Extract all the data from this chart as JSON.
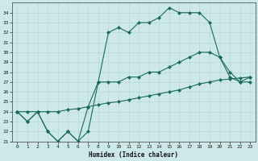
{
  "xlabel": "Humidex (Indice chaleur)",
  "bg_color": "#cce8e8",
  "line_color": "#1a6b5a",
  "grid_color": "#c8dede",
  "line1_x": [
    0,
    1,
    2,
    3,
    4,
    5,
    6,
    7,
    8,
    9,
    10,
    11,
    12,
    13,
    14,
    15,
    16,
    17,
    18,
    19,
    20,
    21,
    22,
    23
  ],
  "line1_y": [
    24,
    23,
    24,
    22,
    21,
    22,
    21,
    22,
    27,
    32,
    32.5,
    32,
    33,
    33,
    33.5,
    34.5,
    34,
    34,
    34,
    33,
    29.5,
    28,
    27,
    27
  ],
  "line2_x": [
    0,
    1,
    2,
    3,
    4,
    5,
    6,
    7,
    8,
    9,
    10,
    11,
    12,
    13,
    14,
    15,
    16,
    17,
    18,
    19,
    20,
    21,
    22,
    23
  ],
  "line2_y": [
    24,
    24,
    24,
    24,
    24,
    24.2,
    24.3,
    24.5,
    24.7,
    24.9,
    25,
    25.2,
    25.4,
    25.6,
    25.8,
    26,
    26.2,
    26.5,
    26.8,
    27,
    27.2,
    27.3,
    27.4,
    27.5
  ],
  "line3_x": [
    0,
    1,
    2,
    3,
    4,
    5,
    6,
    7,
    8,
    9,
    10,
    11,
    12,
    13,
    14,
    15,
    16,
    17,
    18,
    19,
    20,
    21,
    22,
    23
  ],
  "line3_y": [
    24,
    23,
    24,
    22,
    21,
    22,
    21,
    24.5,
    27,
    27,
    27,
    27.5,
    27.5,
    28,
    28,
    28.5,
    29,
    29.5,
    30,
    30,
    29.5,
    27.5,
    27,
    27.5
  ],
  "yticks": [
    21,
    22,
    23,
    24,
    25,
    26,
    27,
    28,
    29,
    30,
    31,
    32,
    33,
    34
  ],
  "xticks": [
    0,
    1,
    2,
    3,
    4,
    5,
    6,
    7,
    8,
    9,
    10,
    11,
    12,
    13,
    14,
    15,
    16,
    17,
    18,
    19,
    20,
    21,
    22,
    23
  ],
  "xlim": [
    -0.5,
    23.5
  ],
  "ylim": [
    21,
    35
  ]
}
